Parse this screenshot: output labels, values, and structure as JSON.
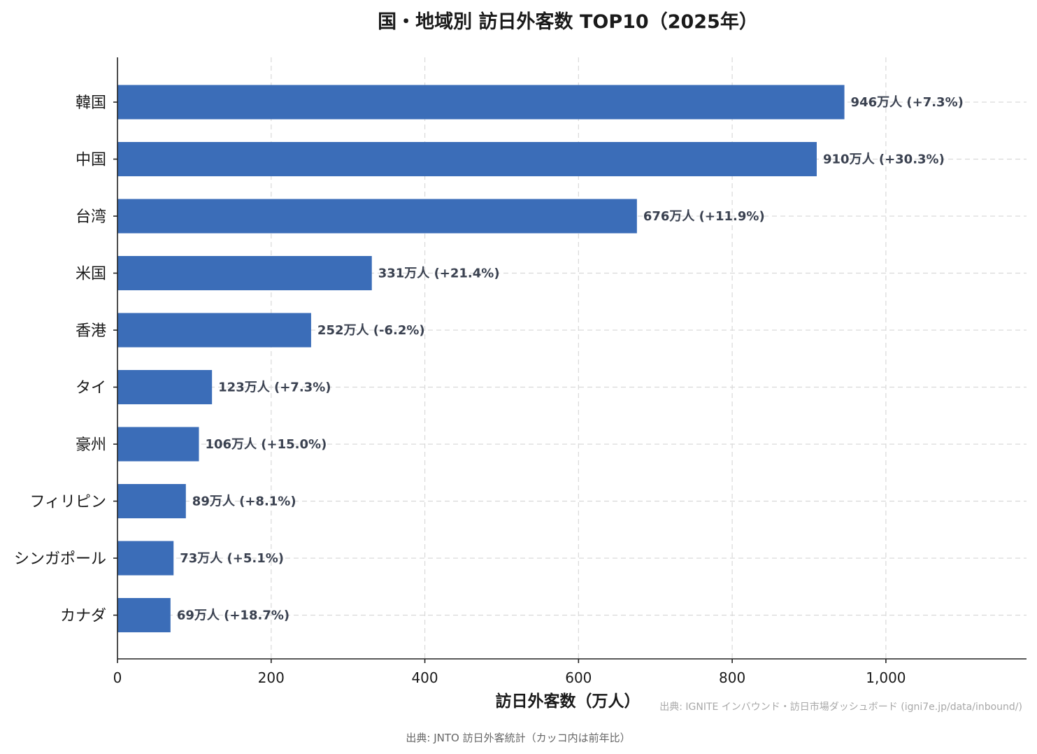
{
  "chart_data": {
    "type": "bar",
    "orientation": "horizontal",
    "title": "国・地域別 訪日外客数 TOP10（2025年）",
    "xlabel": "訪日外客数（万人）",
    "ylabel": "",
    "xlim": [
      0,
      1183
    ],
    "xticks": [
      0,
      200,
      400,
      600,
      800,
      1000
    ],
    "xtick_labels": [
      "0",
      "200",
      "400",
      "600",
      "800",
      "1,000"
    ],
    "grid": true,
    "categories": [
      "韓国",
      "中国",
      "台湾",
      "米国",
      "香港",
      "タイ",
      "豪州",
      "フィリピン",
      "シンガポール",
      "カナダ"
    ],
    "values": [
      946,
      910,
      676,
      331,
      252,
      123,
      106,
      89,
      73,
      69
    ],
    "data_labels": [
      "946万人 (+7.3%)",
      "910万人 (+30.3%)",
      "676万人 (+11.9%)",
      "331万人 (+21.4%)",
      "252万人 (-6.2%)",
      "123万人 (+7.3%)",
      "106万人 (+15.0%)",
      "89万人 (+8.1%)",
      "73万人 (+5.1%)",
      "69万人 (+18.7%)"
    ],
    "bar_color": "#3b6db8"
  },
  "notes": {
    "source_dashboard": "出典: IGNITE インバウンド・訪日市場ダッシュボード (igni7e.jp/data/inbound/)",
    "source_data": "出典: JNTO 訪日外客統計（カッコ内は前年比）"
  }
}
